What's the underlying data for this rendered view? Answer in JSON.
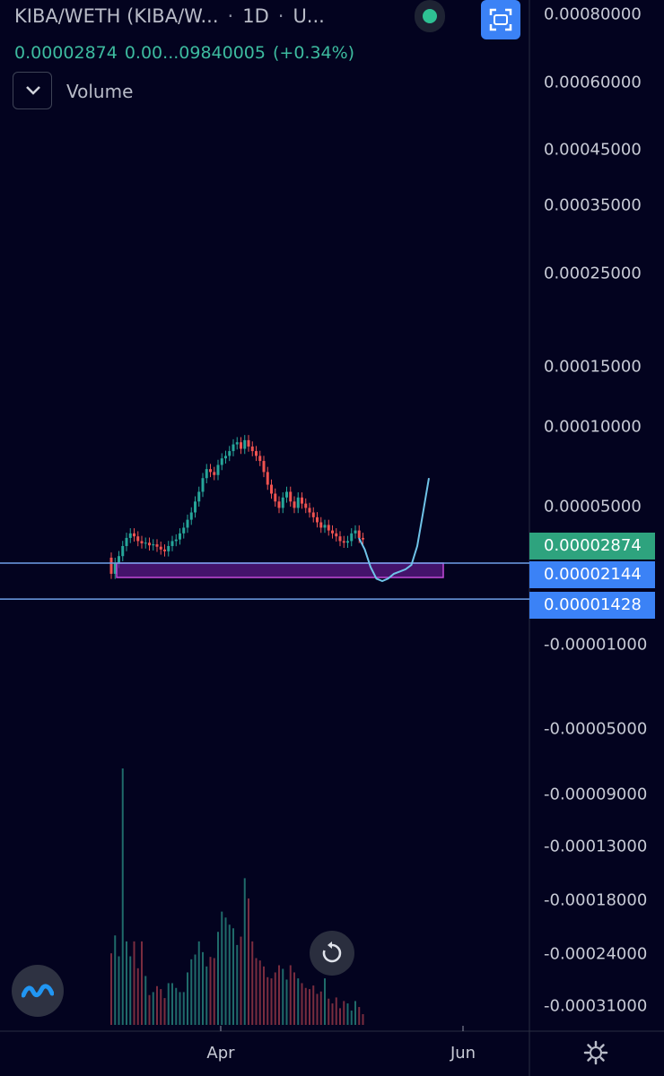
{
  "header": {
    "symbol": "KIBA/WETH (KIBA/W...",
    "separator": "·",
    "interval": "1D",
    "source": "U..."
  },
  "quote": {
    "last": "0.00002874",
    "change_abs": "0.00...09840005",
    "change_pct": "(+0.34%)"
  },
  "volume_label": "Volume",
  "colors": {
    "background": "#03031f",
    "up": "#26a69a",
    "down": "#ef5350",
    "live": "#2ec193",
    "accent_blue": "#3b82f6",
    "zone_fill": "#5b1a86",
    "zone_border": "#c24bd8",
    "line": "#6fc3e8"
  },
  "icons": {
    "live": "live-dot-icon",
    "fullscreen": "fullscreen-icon",
    "collapse": "chevron-down-icon",
    "reset": "reset-icon",
    "logo": "tradingview-logo-icon",
    "settings": "gear-icon"
  },
  "chart_data": {
    "type": "candlestick",
    "y_scale": "log",
    "price_axis_labels": [
      "0.00080000",
      "0.00060000",
      "0.00045000",
      "0.00035000",
      "0.00025000",
      "0.00015000",
      "0.00010000",
      "0.00005000",
      "-0.00001000",
      "-0.00005000",
      "-0.00009000",
      "-0.00013000",
      "-0.00018000",
      "-0.00024000",
      "-0.00031000"
    ],
    "price_tags": [
      {
        "value": "0.00002874",
        "kind": "last"
      },
      {
        "value": "0.00002144",
        "kind": "line"
      },
      {
        "value": "0.00001428",
        "kind": "line"
      }
    ],
    "x_labels": [
      "Apr",
      "Jun"
    ],
    "horizontal_lines": [
      2.144e-05,
      1.428e-05
    ],
    "candles_close": [
      1.9e-05,
      2.15e-05,
      2.32e-05,
      2.6e-05,
      2.85e-05,
      3e-05,
      2.9e-05,
      2.75e-05,
      2.68e-05,
      2.7e-05,
      2.62e-05,
      2.65e-05,
      2.58e-05,
      2.5e-05,
      2.45e-05,
      2.6e-05,
      2.75e-05,
      2.8e-05,
      3e-05,
      3.2e-05,
      3.5e-05,
      3.8e-05,
      4.3e-05,
      4.8e-05,
      5.6e-05,
      6.2e-05,
      6e-05,
      5.8e-05,
      6.5e-05,
      7e-05,
      7.2e-05,
      7.6e-05,
      8.2e-05,
      8.4e-05,
      7.8e-05,
      8.6e-05,
      8e-05,
      7.6e-05,
      7.2e-05,
      6.8e-05,
      6e-05,
      5.2e-05,
      4.7e-05,
      4.3e-05,
      4e-05,
      4.5e-05,
      4.8e-05,
      4.3e-05,
      4e-05,
      4.5e-05,
      4.2e-05,
      4e-05,
      3.8e-05,
      3.6e-05,
      3.4e-05,
      3.2e-05,
      3.3e-05,
      3.1e-05,
      3e-05,
      2.9e-05,
      2.75e-05,
      2.7e-05,
      2.75e-05,
      3e-05,
      3.1e-05,
      2.85e-05,
      2.8e-05
    ],
    "projection_path": [
      2.85e-05,
      2.5e-05,
      2.05e-05,
      1.8e-05,
      1.75e-05,
      1.8e-05,
      1.9e-05,
      1.95e-05,
      2e-05,
      2.1e-05,
      2.6e-05,
      3.8e-05,
      5.6e-05
    ],
    "volume_values": [
      120,
      150,
      115,
      430,
      140,
      115,
      140,
      95,
      140,
      82,
      50,
      55,
      65,
      60,
      45,
      70,
      70,
      62,
      55,
      55,
      88,
      110,
      118,
      140,
      122,
      98,
      114,
      112,
      156,
      190,
      180,
      168,
      162,
      134,
      148,
      246,
      212,
      140,
      112,
      108,
      98,
      80,
      78,
      88,
      100,
      94,
      76,
      100,
      88,
      78,
      70,
      62,
      60,
      66,
      52,
      56,
      78,
      44,
      36,
      46,
      28,
      40,
      36,
      24,
      40,
      30,
      18
    ]
  }
}
